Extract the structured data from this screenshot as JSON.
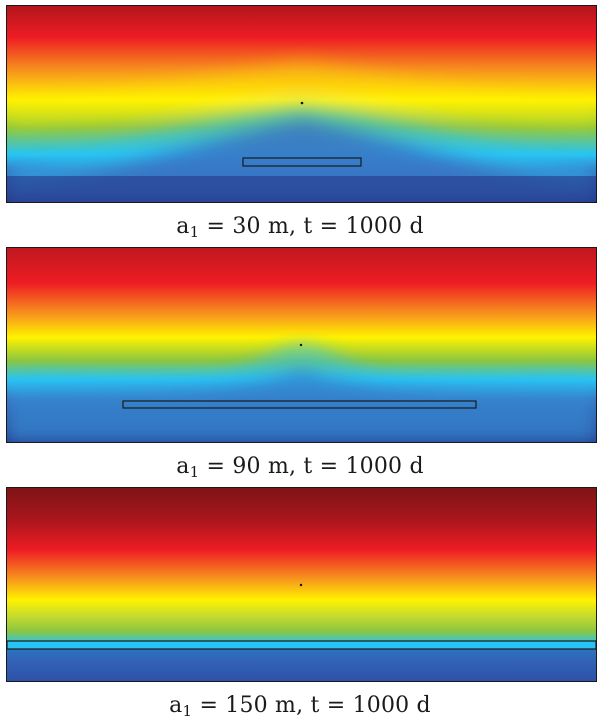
{
  "colors": {
    "dark_red": "#7f1416",
    "red": "#ee1c24",
    "orange": "#f7941d",
    "yellow": "#fff200",
    "green": "#8dc63f",
    "cyan": "#27c4f4",
    "blue": "#2e4b9b",
    "dark_blue": "#1e2a7a"
  },
  "panels": [
    {
      "caption": {
        "symbol": "a",
        "subscript": "1",
        "rest": " = 30 m, t = 1000 d"
      },
      "a1_m": 30,
      "t_d": 1000
    },
    {
      "caption": {
        "symbol": "a",
        "subscript": "1",
        "rest": " = 90 m, t = 1000 d"
      },
      "a1_m": 90,
      "t_d": 1000
    },
    {
      "caption": {
        "symbol": "a",
        "subscript": "1",
        "rest": " = 150 m, t = 1000 d"
      },
      "a1_m": 150,
      "t_d": 1000
    }
  ]
}
